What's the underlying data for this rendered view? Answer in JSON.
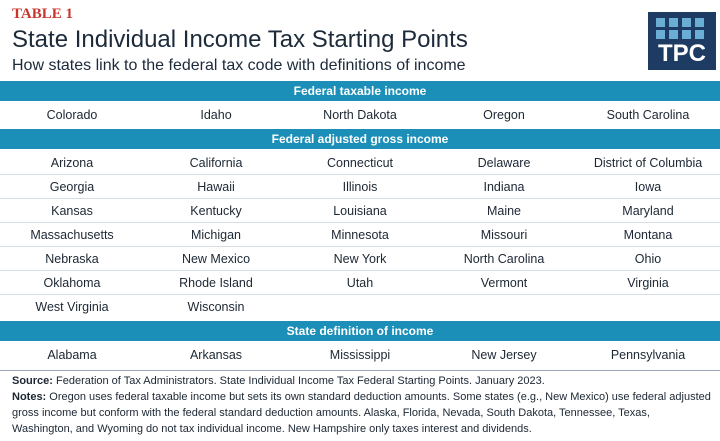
{
  "header": {
    "label": "TABLE 1",
    "title": "State Individual Income Tax Starting Points",
    "subtitle": "How states link to the federal tax code with definitions of income",
    "logo": "TPC"
  },
  "sections": [
    {
      "heading": "Federal taxable income",
      "rows": [
        [
          "Colorado",
          "Idaho",
          "North Dakota",
          "Oregon",
          "South Carolina"
        ]
      ]
    },
    {
      "heading": "Federal adjusted gross income",
      "rows": [
        [
          "Arizona",
          "California",
          "Connecticut",
          "Delaware",
          "District of Columbia"
        ],
        [
          "Georgia",
          "Hawaii",
          "Illinois",
          "Indiana",
          "Iowa"
        ],
        [
          "Kansas",
          "Kentucky",
          "Louisiana",
          "Maine",
          "Maryland"
        ],
        [
          "Massachusetts",
          "Michigan",
          "Minnesota",
          "Missouri",
          "Montana"
        ],
        [
          "Nebraska",
          "New Mexico",
          "New York",
          "North Carolina",
          "Ohio"
        ],
        [
          "Oklahoma",
          "Rhode Island",
          "Utah",
          "Vermont",
          "Virginia"
        ],
        [
          "West Virginia",
          "Wisconsin"
        ]
      ]
    },
    {
      "heading": "State definition of income",
      "rows": [
        [
          "Alabama",
          "Arkansas",
          "Mississippi",
          "New Jersey",
          "Pennsylvania"
        ]
      ]
    }
  ],
  "footer": {
    "source": {
      "label": "Source:",
      "text": "Federation of Tax Administrators. State Individual Income Tax Federal Starting Points. January 2023."
    },
    "notes": {
      "label": "Notes:",
      "text": "Oregon uses federal taxable income but sets its own standard deduction amounts. Some states (e.g., New Mexico) use federal adjusted gross income but conform with the federal standard deduction amounts. Alaska, Florida, Nevada, South Dakota, Tennessee, Texas, Washington, and Wyoming do not tax individual income. New Hampshire only taxes interest and dividends."
    }
  }
}
